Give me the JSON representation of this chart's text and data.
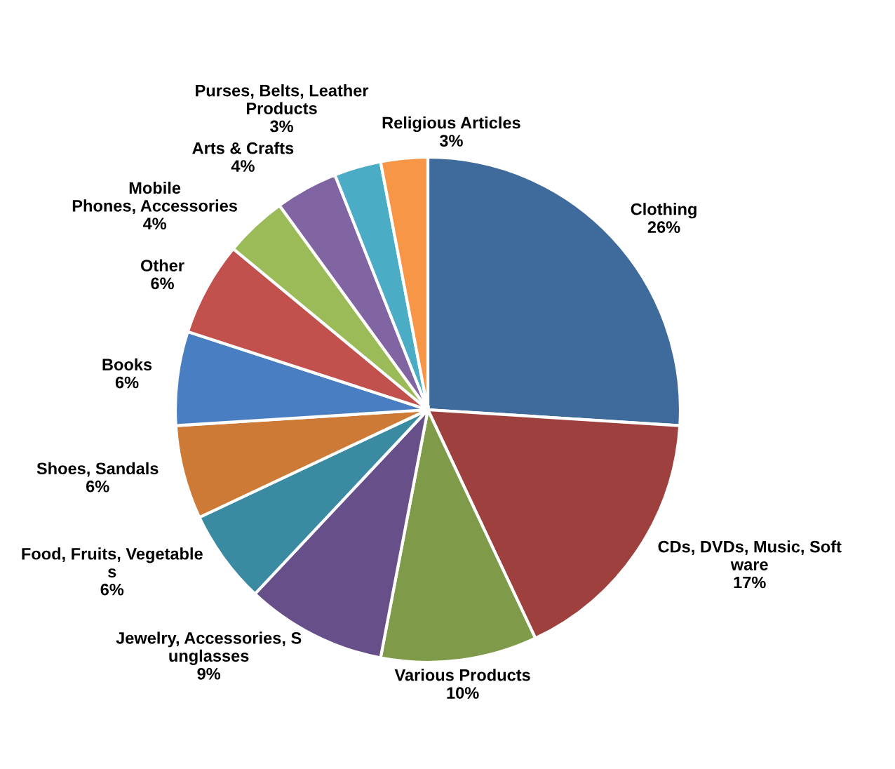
{
  "chart_data": {
    "type": "pie",
    "categories": [
      "Clothing",
      "CDs, DVDs, Music, Soft\nware",
      "Various Products",
      "Jewelry, Accessories, S\nunglasses",
      "Food, Fruits, Vegetable\ns",
      "Shoes, Sandals",
      "Books",
      "Other",
      "Mobile\nPhones, Accessories",
      "Arts & Crafts",
      "Purses, Belts, Leather\nProducts",
      "Religious Articles"
    ],
    "values": [
      26,
      17,
      10,
      9,
      6,
      6,
      6,
      6,
      4,
      4,
      3,
      3
    ],
    "value_labels": [
      "26%",
      "17%",
      "10%",
      "9%",
      "6%",
      "6%",
      "6%",
      "6%",
      "4%",
      "4%",
      "3%",
      "3%"
    ],
    "colors": [
      "#3f6a9c",
      "#9e403d",
      "#7f9b4a",
      "#67508a",
      "#3a8aa2",
      "#cc7a36",
      "#4a7ec2",
      "#c2504d",
      "#9bbb59",
      "#8065a2",
      "#4bacc6",
      "#f79646"
    ]
  }
}
